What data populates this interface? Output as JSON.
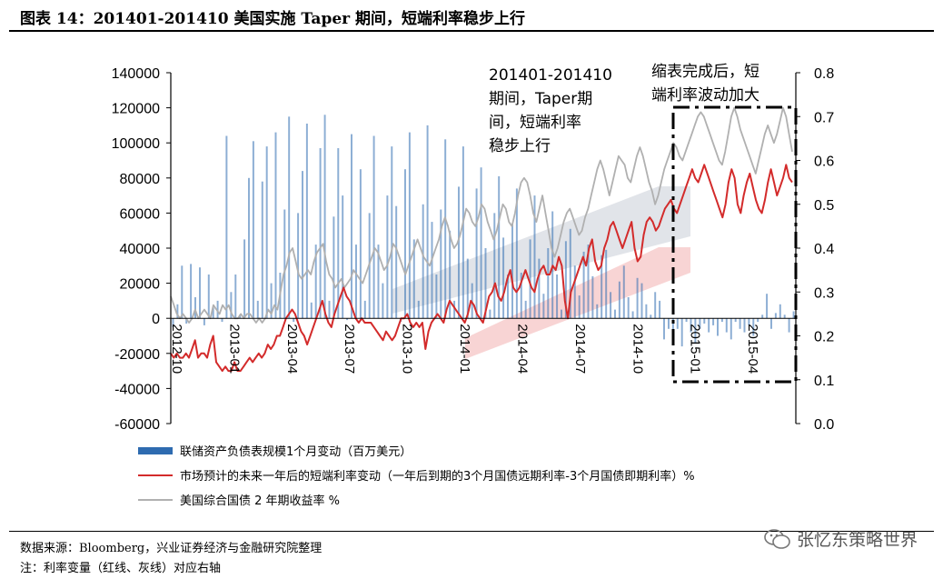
{
  "figure_title": "图表 14：201401-201410 美国实施 Taper 期间，短端利率稳步上行",
  "source_note": "数据来源：Bloomberg，兴业证券经济与金融研究院整理",
  "axis_note": "注：利率变量（红线、灰线）对应右轴",
  "watermark": "张忆东策略世界",
  "colors": {
    "bar": "#2e6bb0",
    "red": "#d32b2b",
    "gray": "#b0b0b0",
    "bg_band_gray": "#d9dde3",
    "bg_band_red": "#f6c9c9"
  },
  "chart_data": {
    "type": "bar+line",
    "x_tick_labels": [
      "2012-10",
      "2013-01",
      "2013-04",
      "2013-07",
      "2013-10",
      "2014-01",
      "2014-04",
      "2014-07",
      "2014-10",
      "2015-01",
      "2015-04"
    ],
    "left_axis": {
      "ylim": [
        -60000,
        140000
      ],
      "ticks": [
        -60000,
        -40000,
        -20000,
        0,
        20000,
        40000,
        60000,
        80000,
        100000,
        120000,
        140000
      ]
    },
    "right_axis": {
      "ylim": [
        0.0,
        0.8
      ],
      "ticks": [
        0.0,
        0.1,
        0.2,
        0.3,
        0.4,
        0.5,
        0.6,
        0.7,
        0.8
      ]
    },
    "annotations": [
      {
        "text": [
          "201401-201410",
          "期间，Taper期",
          "间，短端利率",
          "稳步上行"
        ]
      },
      {
        "text": [
          "缩表完成后，短",
          "端利率波动加大"
        ]
      }
    ],
    "legend": [
      {
        "label": "联储资产负债表规模1个月变动（百万美元）",
        "kind": "bar"
      },
      {
        "label": "市场预计的未来一年后的短端利率变动（一年后到期的3个月国债远期利率-3个月国债即期利率）%",
        "kind": "red"
      },
      {
        "label": "美国综合国债 2 年期收益率 %",
        "kind": "gray"
      }
    ],
    "series": [
      {
        "name": "联储资产负债表规模1个月变动（百万美元）",
        "axis": "left",
        "kind": "bar",
        "values": [
          -5000,
          8000,
          30000,
          -3000,
          31000,
          12000,
          29000,
          -4000,
          25000,
          6000,
          10000,
          -2000,
          104000,
          15000,
          25000,
          2000,
          45000,
          80000,
          101000,
          10000,
          78000,
          98000,
          20000,
          106000,
          26000,
          62000,
          115000,
          -2000,
          60000,
          84000,
          111000,
          9000,
          42000,
          97000,
          116000,
          10000,
          58000,
          97000,
          70000,
          -1000,
          105000,
          42000,
          85000,
          10000,
          60000,
          104000,
          42000,
          20000,
          70000,
          98000,
          64000,
          -2000,
          85000,
          106000,
          45000,
          10000,
          65000,
          110000,
          55000,
          25000,
          62000,
          102000,
          50000,
          10000,
          75000,
          98000,
          34000,
          20000,
          74000,
          86000,
          40000,
          5000,
          60000,
          81000,
          46000,
          25000,
          54000,
          74000,
          26000,
          10000,
          45000,
          70000,
          34000,
          14000,
          40000,
          61000,
          25000,
          5000,
          44000,
          51000,
          30000,
          13000,
          38000,
          42000,
          24000,
          8000,
          36000,
          39000,
          15000,
          5000,
          21000,
          30000,
          12000,
          4000,
          23000,
          20000,
          8000,
          2000,
          15000,
          10000,
          -12000,
          -6000,
          -10000,
          -6000,
          -16000,
          -2000,
          -8000,
          -14000,
          -6000,
          -3000,
          -8000,
          -4000,
          -10000,
          -2000,
          -8000,
          -12000,
          -2000,
          -6000,
          -8000,
          -4000,
          -10000,
          -2000,
          2000,
          14000,
          -6000,
          3000,
          8000,
          2000,
          -8000,
          4000
        ]
      },
      {
        "name": "市场预计的未来一年后的短端利率变动（一年后到期的3个月国债远期利率-3个月国债即期利率）%",
        "axis": "right",
        "kind": "line",
        "values": [
          0.16,
          0.15,
          0.16,
          0.15,
          0.15,
          0.16,
          0.15,
          0.17,
          0.19,
          0.15,
          0.16,
          0.16,
          0.15,
          0.18,
          0.2,
          0.14,
          0.13,
          0.12,
          0.13,
          0.12,
          0.12,
          0.14,
          0.12,
          0.12,
          0.13,
          0.14,
          0.15,
          0.14,
          0.15,
          0.16,
          0.15,
          0.16,
          0.18,
          0.17,
          0.18,
          0.2,
          0.2,
          0.22,
          0.24,
          0.25,
          0.26,
          0.25,
          0.23,
          0.21,
          0.2,
          0.18,
          0.2,
          0.22,
          0.24,
          0.26,
          0.28,
          0.25,
          0.23,
          0.22,
          0.25,
          0.27,
          0.29,
          0.31,
          0.29,
          0.28,
          0.26,
          0.24,
          0.23,
          0.24,
          0.23,
          0.23,
          0.23,
          0.22,
          0.21,
          0.2,
          0.19,
          0.21,
          0.2,
          0.19,
          0.2,
          0.22,
          0.24,
          0.24,
          0.25,
          0.23,
          0.22,
          0.23,
          0.22,
          0.23,
          0.17,
          0.21,
          0.23,
          0.24,
          0.25,
          0.24,
          0.23,
          0.26,
          0.28,
          0.27,
          0.26,
          0.25,
          0.24,
          0.23,
          0.25,
          0.28,
          0.27,
          0.25,
          0.24,
          0.23,
          0.26,
          0.29,
          0.3,
          0.32,
          0.29,
          0.28,
          0.3,
          0.33,
          0.35,
          0.31,
          0.3,
          0.31,
          0.33,
          0.35,
          0.33,
          0.31,
          0.3,
          0.33,
          0.35,
          0.36,
          0.34,
          0.34,
          0.36,
          0.35,
          0.38,
          0.36,
          0.28,
          0.24,
          0.3,
          0.32,
          0.34,
          0.36,
          0.38,
          0.36,
          0.4,
          0.42,
          0.37,
          0.35,
          0.36,
          0.4,
          0.42,
          0.45,
          0.46,
          0.44,
          0.42,
          0.4,
          0.42,
          0.44,
          0.46,
          0.4,
          0.37,
          0.38,
          0.43,
          0.46,
          0.47,
          0.46,
          0.44,
          0.45,
          0.47,
          0.49,
          0.5,
          0.51,
          0.49,
          0.48,
          0.5,
          0.52,
          0.54,
          0.56,
          0.58,
          0.56,
          0.55,
          0.57,
          0.59,
          0.57,
          0.55,
          0.53,
          0.51,
          0.49,
          0.47,
          0.5,
          0.55,
          0.58,
          0.56,
          0.5,
          0.48,
          0.52,
          0.55,
          0.57,
          0.54,
          0.51,
          0.49,
          0.48,
          0.51,
          0.55,
          0.58,
          0.55,
          0.52,
          0.54,
          0.56,
          0.59,
          0.56,
          0.55
        ]
      },
      {
        "name": "美国综合国债 2 年期收益率 %",
        "axis": "right",
        "kind": "line",
        "values": [
          0.29,
          0.27,
          0.25,
          0.24,
          0.25,
          0.24,
          0.23,
          0.24,
          0.26,
          0.24,
          0.25,
          0.26,
          0.25,
          0.24,
          0.27,
          0.26,
          0.25,
          0.27,
          0.26,
          0.27,
          0.25,
          0.24,
          0.24,
          0.25,
          0.24,
          0.25,
          0.25,
          0.24,
          0.23,
          0.24,
          0.23,
          0.24,
          0.26,
          0.25,
          0.27,
          0.26,
          0.3,
          0.34,
          0.36,
          0.39,
          0.4,
          0.37,
          0.34,
          0.33,
          0.34,
          0.35,
          0.34,
          0.37,
          0.39,
          0.4,
          0.41,
          0.37,
          0.34,
          0.33,
          0.31,
          0.32,
          0.33,
          0.31,
          0.32,
          0.33,
          0.35,
          0.34,
          0.33,
          0.32,
          0.34,
          0.36,
          0.38,
          0.4,
          0.39,
          0.37,
          0.35,
          0.36,
          0.38,
          0.41,
          0.4,
          0.38,
          0.36,
          0.34,
          0.36,
          0.38,
          0.4,
          0.42,
          0.4,
          0.38,
          0.37,
          0.36,
          0.38,
          0.4,
          0.42,
          0.45,
          0.47,
          0.45,
          0.42,
          0.4,
          0.41,
          0.43,
          0.46,
          0.49,
          0.48,
          0.46,
          0.45,
          0.47,
          0.5,
          0.49,
          0.46,
          0.44,
          0.42,
          0.44,
          0.47,
          0.5,
          0.49,
          0.46,
          0.45,
          0.48,
          0.52,
          0.55,
          0.56,
          0.55,
          0.52,
          0.48,
          0.46,
          0.49,
          0.52,
          0.48,
          0.44,
          0.4,
          0.38,
          0.4,
          0.43,
          0.46,
          0.48,
          0.49,
          0.47,
          0.45,
          0.43,
          0.44,
          0.47,
          0.49,
          0.52,
          0.55,
          0.58,
          0.6,
          0.58,
          0.55,
          0.52,
          0.55,
          0.58,
          0.61,
          0.6,
          0.59,
          0.56,
          0.55,
          0.58,
          0.61,
          0.63,
          0.61,
          0.58,
          0.55,
          0.53,
          0.5,
          0.52,
          0.55,
          0.58,
          0.6,
          0.62,
          0.64,
          0.63,
          0.61,
          0.6,
          0.62,
          0.64,
          0.66,
          0.68,
          0.7,
          0.71,
          0.7,
          0.68,
          0.66,
          0.64,
          0.62,
          0.6,
          0.59,
          0.62,
          0.66,
          0.7,
          0.72,
          0.7,
          0.67,
          0.65,
          0.63,
          0.61,
          0.59,
          0.57,
          0.6,
          0.63,
          0.66,
          0.68,
          0.66,
          0.64,
          0.66,
          0.69,
          0.72,
          0.7,
          0.66,
          0.62
        ]
      }
    ]
  }
}
